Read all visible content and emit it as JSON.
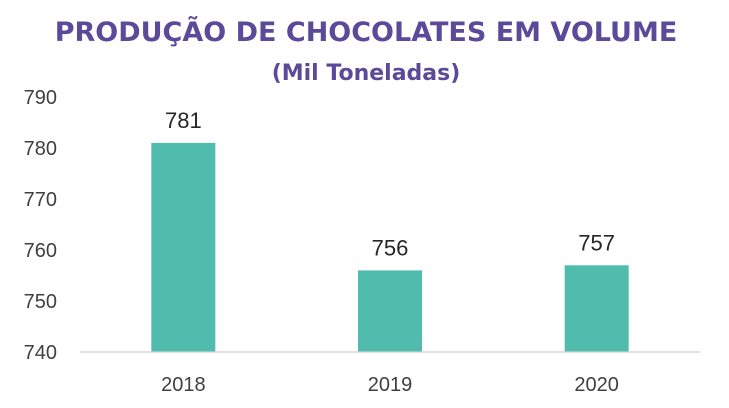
{
  "colors": {
    "title": "#5B4A9A",
    "bar": "#50BCAE",
    "axis": "#D0D0D0",
    "text": "#404040"
  },
  "chart_data": {
    "type": "bar",
    "title": "PRODUÇÃO DE CHOCOLATES EM VOLUME",
    "subtitle": "(Mil Toneladas)",
    "categories": [
      "2018",
      "2019",
      "2020"
    ],
    "values": [
      781,
      756,
      757
    ],
    "data_labels": [
      "781",
      "756",
      "757"
    ],
    "y_ticks": [
      "740",
      "750",
      "760",
      "770",
      "780",
      "790"
    ],
    "ylim": [
      740,
      790
    ],
    "grid": false,
    "legend": "none"
  }
}
